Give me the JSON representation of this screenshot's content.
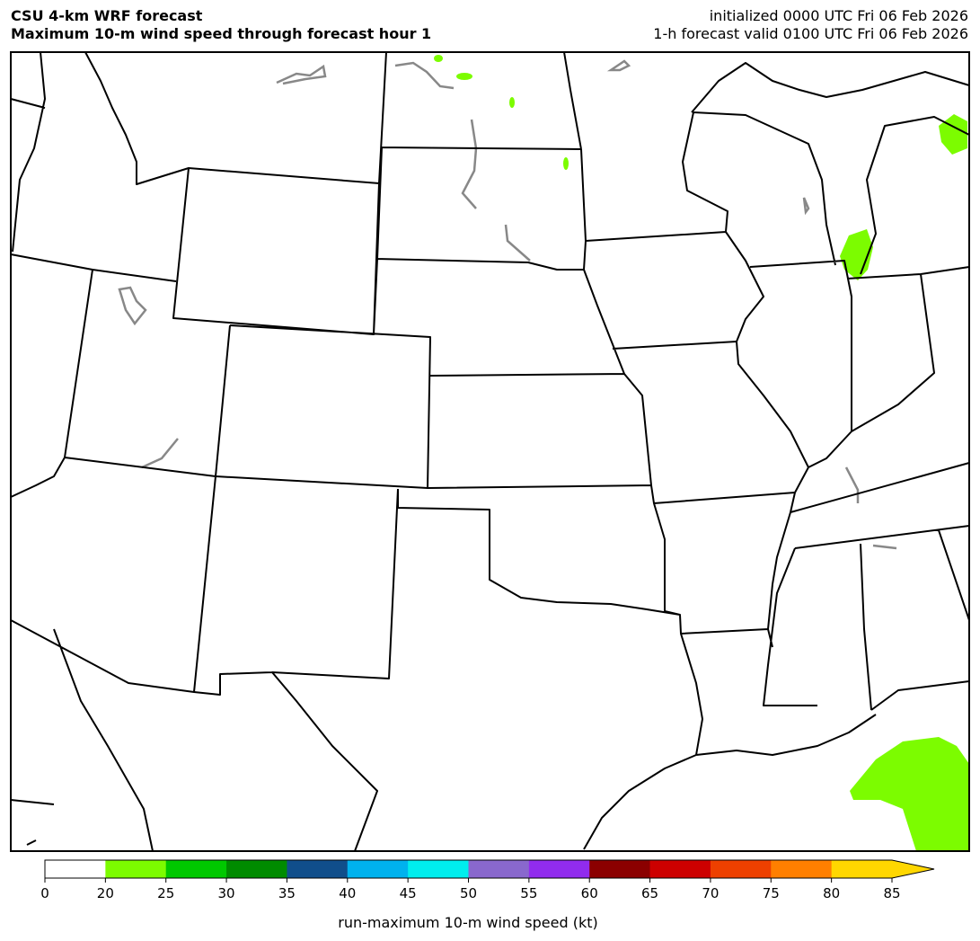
{
  "header": {
    "title": "CSU 4-km WRF forecast",
    "subtitle": "Maximum 10-m wind speed through forecast hour 1",
    "initialized": "initialized 0000 UTC Fri 06 Feb 2026",
    "valid": "1-h forecast valid 0100 UTC Fri 06 Feb 2026"
  },
  "colorbar": {
    "label": "run-maximum 10-m wind speed (kt)",
    "ticks": [
      0,
      20,
      25,
      30,
      35,
      40,
      45,
      50,
      55,
      60,
      65,
      70,
      75,
      80,
      85
    ],
    "colors": [
      "#ffffff",
      "#7cfc00",
      "#00c800",
      "#008b00",
      "#104e8b",
      "#00b2ee",
      "#00eeee",
      "#8968cd",
      "#912cee",
      "#8b0000",
      "#cd0000",
      "#ee4000",
      "#ff7f00",
      "#ffd700"
    ],
    "extend_color": "#ffd700"
  }
}
